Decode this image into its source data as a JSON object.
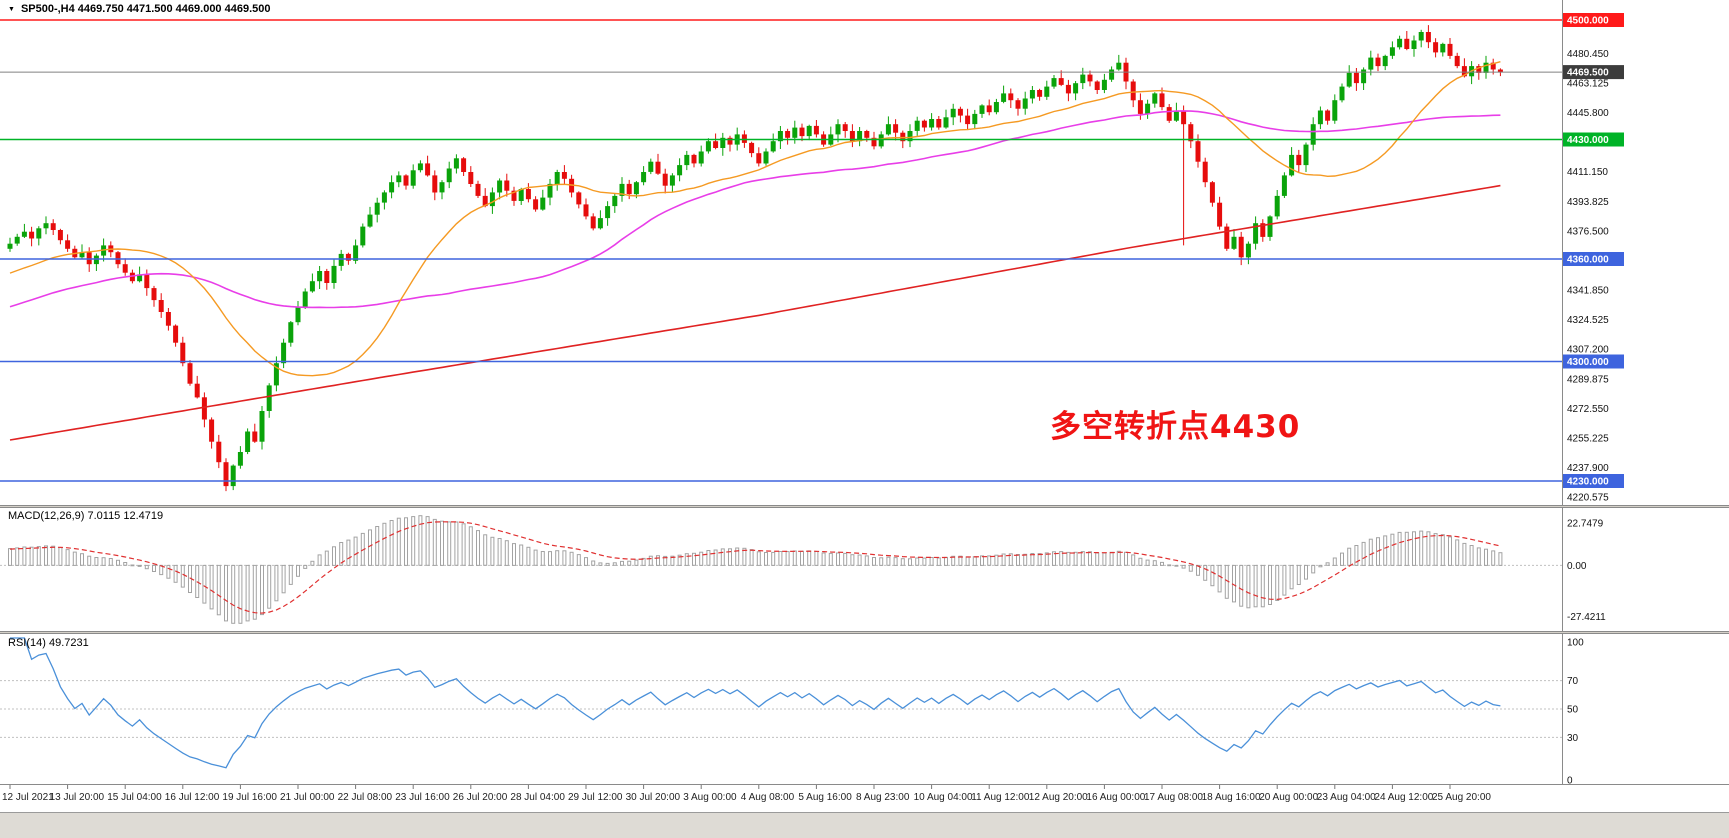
{
  "header": {
    "symbol_title": "SP500-,H4 4469.750 4471.500 4469.000 4469.500"
  },
  "icons": {
    "symbol_marker": "▼"
  },
  "indicators": {
    "macd_label": "MACD(12,26,9) 7.0115 12.4719",
    "rsi_label": "RSI(14) 49.7231"
  },
  "annotation": {
    "text": "多空转折点4430",
    "color": "#f01414"
  },
  "colors": {
    "up": "#0aa30a",
    "down": "#e60c0c",
    "ma_fast": "#f59a23",
    "ma_mid": "#e83ee8",
    "ma_slow": "#e02222",
    "hline_red": "#ff1a1a",
    "hline_green": "#00b327",
    "hline_blue": "#3e64de",
    "current_price_line": "#808080",
    "current_tag_bg": "#3c3c3c",
    "macd_hist": "#a3a3a3",
    "macd_signal": "#e03030",
    "rsi_line": "#4a90d9",
    "axis_text": "#111111",
    "grid_dotted": "#c0c0c0"
  },
  "chart_data": {
    "type": "candlestick",
    "symbol": "SP500-",
    "timeframe": "H4",
    "ohlc": {
      "open": 4469.75,
      "high": 4471.5,
      "low": 4469.0,
      "close": 4469.5
    },
    "bars_per_label": 8,
    "x_labels": [
      "12 Jul 2021",
      "13 Jul 20:00",
      "15 Jul 04:00",
      "16 Jul 12:00",
      "19 Jul 16:00",
      "21 Jul 00:00",
      "22 Jul 08:00",
      "23 Jul 16:00",
      "26 Jul 20:00",
      "28 Jul 04:00",
      "29 Jul 12:00",
      "30 Jul 20:00",
      "3 Aug 00:00",
      "4 Aug 08:00",
      "5 Aug 16:00",
      "8 Aug 23:00",
      "10 Aug 04:00",
      "11 Aug 12:00",
      "12 Aug 20:00",
      "16 Aug 00:00",
      "17 Aug 08:00",
      "18 Aug 16:00",
      "20 Aug 00:00",
      "23 Aug 04:00",
      "24 Aug 12:00",
      "25 Aug 20:00"
    ],
    "closes": [
      4369,
      4373,
      4376,
      4372,
      4378,
      4381,
      4377,
      4371,
      4366,
      4361,
      4364,
      4357,
      4362,
      4368,
      4364,
      4357,
      4352,
      4347,
      4351,
      4343,
      4336,
      4329,
      4321,
      4311,
      4299,
      4287,
      4279,
      4266,
      4253,
      4241,
      4227,
      4239,
      4247,
      4259,
      4253,
      4271,
      4286,
      4299,
      4311,
      4323,
      4332,
      4341,
      4347,
      4353,
      4346,
      4356,
      4363,
      4359,
      4368,
      4379,
      4386,
      4393,
      4399,
      4405,
      4409,
      4403,
      4412,
      4416,
      4409,
      4399,
      4405,
      4413,
      4419,
      4411,
      4404,
      4397,
      4391,
      4399,
      4406,
      4400,
      4394,
      4401,
      4395,
      4389,
      4396,
      4404,
      4411,
      4407,
      4399,
      4392,
      4385,
      4378,
      4384,
      4391,
      4397,
      4404,
      4398,
      4405,
      4411,
      4417,
      4410,
      4403,
      4409,
      4415,
      4421,
      4416,
      4423,
      4429,
      4425,
      4431,
      4427,
      4433,
      4428,
      4422,
      4416,
      4423,
      4429,
      4435,
      4431,
      4437,
      4432,
      4438,
      4433,
      4427,
      4433,
      4439,
      4435,
      4429,
      4435,
      4431,
      4426,
      4433,
      4439,
      4434,
      4429,
      4435,
      4441,
      4437,
      4442,
      4437,
      4443,
      4448,
      4444,
      4439,
      4445,
      4450,
      4446,
      4452,
      4457,
      4453,
      4448,
      4454,
      4459,
      4455,
      4461,
      4466,
      4462,
      4457,
      4463,
      4468,
      4464,
      4459,
      4465,
      4471,
      4475,
      4464,
      4453,
      4445,
      4451,
      4457,
      4449,
      4441,
      4447,
      4439,
      4429,
      4417,
      4405,
      4393,
      4379,
      4366,
      4373,
      4361,
      4369,
      4381,
      4373,
      4385,
      4397,
      4409,
      4421,
      4415,
      4427,
      4439,
      4447,
      4441,
      4453,
      4461,
      4469,
      4463,
      4471,
      4478,
      4473,
      4479,
      4484,
      4489,
      4483,
      4488,
      4493,
      4487,
      4481,
      4486,
      4479,
      4473,
      4467,
      4473,
      4469,
      4475,
      4471,
      4469.5
    ],
    "long_wicks": [
      {
        "index": 163,
        "low": 4368
      }
    ],
    "y_axis": {
      "scale_labels": [
        4480.45,
        4463.125,
        4445.8,
        4411.15,
        4393.825,
        4376.5,
        4341.85,
        4324.525,
        4307.2,
        4289.875,
        4272.55,
        4255.225,
        4237.9,
        4220.575
      ]
    },
    "hlines": [
      {
        "price": 4500.0,
        "label": "4500.000",
        "color_key": "hline_red"
      },
      {
        "price": 4430.0,
        "label": "4430.000",
        "color_key": "hline_green"
      },
      {
        "price": 4360.0,
        "label": "4360.000",
        "color_key": "hline_blue"
      },
      {
        "price": 4300.0,
        "label": "4300.000",
        "color_key": "hline_blue"
      },
      {
        "price": 4230.0,
        "label": "4230.000",
        "color_key": "hline_blue"
      }
    ],
    "current_price": {
      "value": 4469.5,
      "label": "4469.500"
    },
    "ma": {
      "fast_period": 24,
      "mid_period": 55,
      "slow_points": [
        [
          0,
          4254
        ],
        [
          52,
          4291
        ],
        [
          104,
          4327
        ],
        [
          156,
          4367
        ],
        [
          207,
          4403
        ]
      ]
    },
    "macd": {
      "params": [
        12,
        26,
        9
      ],
      "value_macd": 7.0115,
      "value_signal": 12.4719,
      "axis_labels": [
        "22.7479",
        "0.00",
        "-27.4211"
      ],
      "axis_values": [
        22.7479,
        0,
        -27.4211
      ]
    },
    "rsi": {
      "period": 14,
      "value": 49.7231,
      "axis_labels": [
        "100",
        "70",
        "50",
        "30",
        "0"
      ],
      "axis_values": [
        100,
        70,
        50,
        30,
        0
      ],
      "levels": [
        70,
        50,
        30
      ]
    }
  }
}
